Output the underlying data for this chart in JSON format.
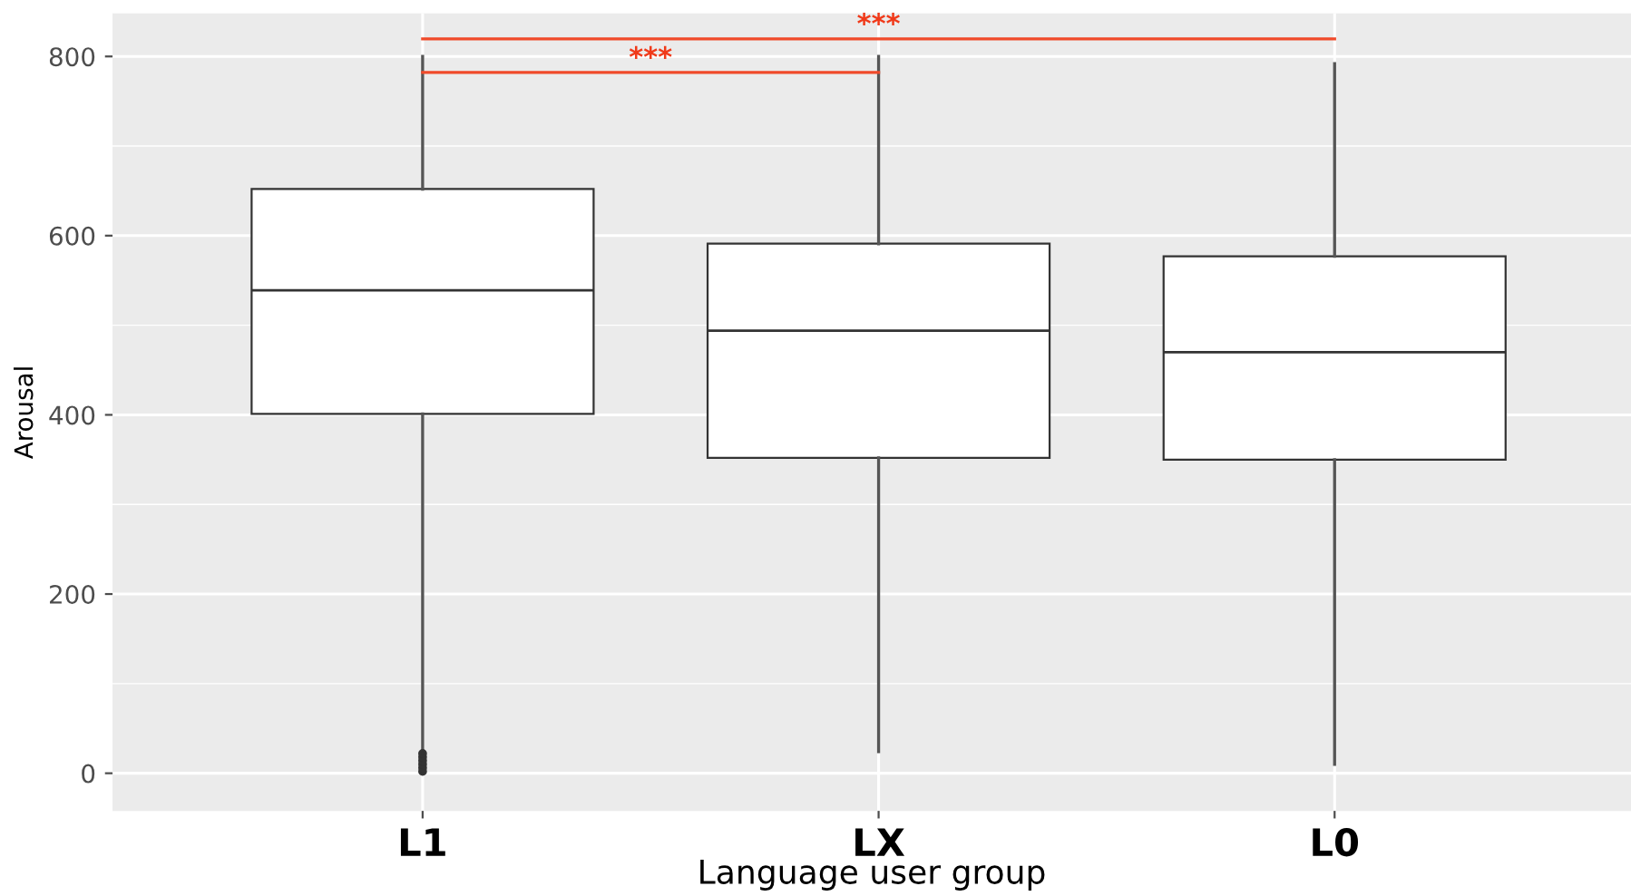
{
  "chart_data": {
    "type": "box",
    "categories": [
      "L1",
      "LX",
      "L0"
    ],
    "xlabel": "Language user group",
    "ylabel": "Arousal",
    "ylim": [
      -42,
      848
    ],
    "yticks": [
      0,
      200,
      400,
      600,
      800
    ],
    "grid": true,
    "boxes": [
      {
        "low": 25,
        "q1": 401,
        "median": 539,
        "q3": 652,
        "high": 800,
        "outliers": [
          2,
          6,
          10,
          14,
          18,
          22
        ]
      },
      {
        "low": 24,
        "q1": 352,
        "median": 494,
        "q3": 591,
        "high": 800
      },
      {
        "low": 10,
        "q1": 350,
        "median": 470,
        "q3": 577,
        "high": 792
      }
    ],
    "annotations": [
      "***",
      "***"
    ]
  }
}
